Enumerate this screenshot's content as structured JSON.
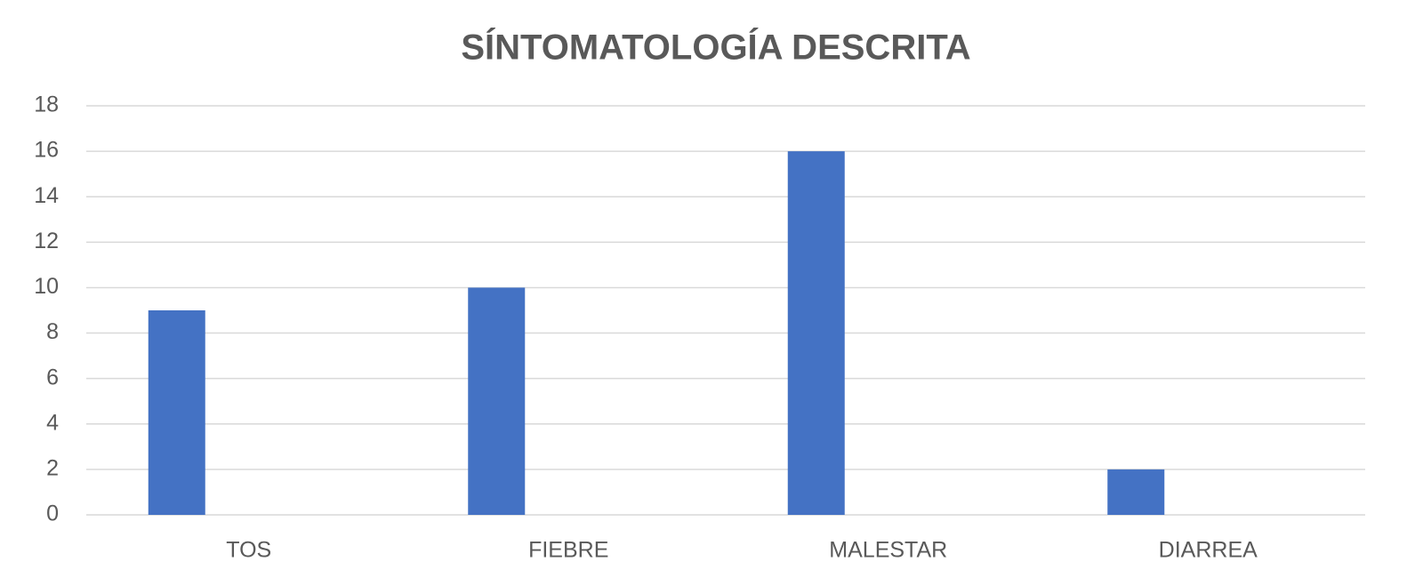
{
  "chart_data": {
    "type": "bar",
    "title": "SÍNTOMATOLOGÍA DESCRITA",
    "categories": [
      "TOS",
      "FIEBRE",
      "MALESTAR",
      "DIARREA"
    ],
    "values": [
      9,
      10,
      16,
      2
    ],
    "color": "#4472c4",
    "ylim": [
      0,
      18
    ],
    "yticks": [
      0,
      2,
      4,
      6,
      8,
      10,
      12,
      14,
      16,
      18
    ],
    "grid": true
  }
}
